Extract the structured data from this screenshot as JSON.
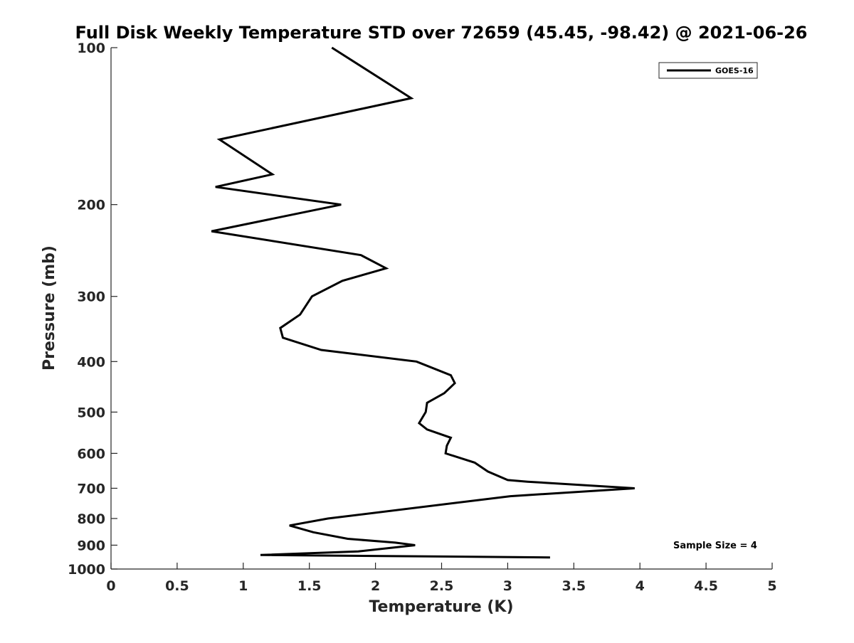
{
  "chart_data": {
    "type": "line",
    "title": "Full Disk Weekly Temperature STD over 72659 (45.45, -98.42) @ 2021-06-26",
    "xlabel": "Temperature (K)",
    "ylabel": "Pressure (mb)",
    "xlim": [
      0,
      5
    ],
    "ylim": [
      100,
      1000
    ],
    "y_scale": "log",
    "y_reversed": true,
    "x_ticks": [
      0,
      0.5,
      1,
      1.5,
      2,
      2.5,
      3,
      3.5,
      4,
      4.5,
      5
    ],
    "x_tick_labels": [
      "0",
      "0.5",
      "1",
      "1.5",
      "2",
      "2.5",
      "3",
      "3.5",
      "4",
      "4.5",
      "5"
    ],
    "y_ticks": [
      100,
      200,
      300,
      400,
      500,
      600,
      700,
      800,
      900,
      1000
    ],
    "y_tick_labels": [
      "100",
      "200",
      "300",
      "400",
      "500",
      "600",
      "700",
      "800",
      "900",
      "1000"
    ],
    "grid": false,
    "legend_position": "top-right",
    "annotation": "Sample Size = 4",
    "series": [
      {
        "name": "GOES-16",
        "color": "#000000",
        "x": [
          1.67,
          2.27,
          0.82,
          1.22,
          0.79,
          1.74,
          0.76,
          1.89,
          2.08,
          1.75,
          1.52,
          1.43,
          1.28,
          1.3,
          1.59,
          2.31,
          2.57,
          2.6,
          2.52,
          2.39,
          2.38,
          2.33,
          2.39,
          2.57,
          2.54,
          2.53,
          2.75,
          2.85,
          3.0,
          3.15,
          3.96,
          3.02,
          1.64,
          1.35,
          1.53,
          1.79,
          2.15,
          2.3,
          1.87,
          1.13,
          3.32
        ],
        "y": [
          100,
          125,
          150,
          175,
          185,
          200,
          225,
          250,
          265,
          280,
          300,
          325,
          345,
          360,
          380,
          400,
          425,
          440,
          460,
          480,
          500,
          525,
          540,
          560,
          580,
          600,
          625,
          650,
          675,
          680,
          700,
          725,
          800,
          825,
          850,
          875,
          890,
          900,
          925,
          940,
          950
        ]
      }
    ]
  }
}
